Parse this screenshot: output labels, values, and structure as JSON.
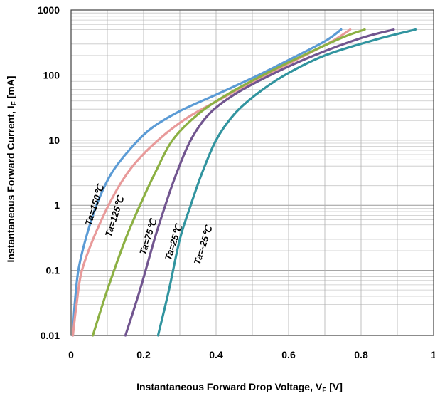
{
  "chart_data": {
    "type": "line",
    "xlabel": "Instantaneous Forward Drop Voltage, V",
    "xlabel_sub": "F",
    "xlabel_unit": " [V]",
    "ylabel": "Instantaneous Forward Current, I",
    "ylabel_sub": "F",
    "ylabel_unit": " [mA]",
    "xlim": [
      0,
      1
    ],
    "ylim": [
      0.01,
      1000
    ],
    "yscale": "log",
    "grid": true,
    "x_ticks": [
      "0",
      "0.2",
      "0.4",
      "0.6",
      "0.8",
      "1"
    ],
    "y_ticks": [
      "0.01",
      "0.1",
      "1",
      "10",
      "100",
      "1000"
    ],
    "series": [
      {
        "name": "Ta=150℃",
        "color": "#5b9bd5",
        "points": [
          [
            0.005,
            0.01
          ],
          [
            0.01,
            0.03
          ],
          [
            0.02,
            0.1
          ],
          [
            0.04,
            0.3
          ],
          [
            0.07,
            1
          ],
          [
            0.11,
            3
          ],
          [
            0.16,
            7
          ],
          [
            0.22,
            15
          ],
          [
            0.3,
            28
          ],
          [
            0.4,
            50
          ],
          [
            0.5,
            90
          ],
          [
            0.6,
            170
          ],
          [
            0.7,
            330
          ],
          [
            0.745,
            500
          ]
        ]
      },
      {
        "name": "Ta=125℃",
        "color": "#e89a9a",
        "points": [
          [
            0.005,
            0.01
          ],
          [
            0.015,
            0.03
          ],
          [
            0.03,
            0.1
          ],
          [
            0.07,
            0.4
          ],
          [
            0.12,
            1.5
          ],
          [
            0.17,
            4
          ],
          [
            0.24,
            10
          ],
          [
            0.32,
            22
          ],
          [
            0.42,
            45
          ],
          [
            0.52,
            90
          ],
          [
            0.62,
            170
          ],
          [
            0.72,
            330
          ],
          [
            0.77,
            500
          ]
        ]
      },
      {
        "name": "Ta=75℃",
        "color": "#8cb043",
        "points": [
          [
            0.06,
            0.01
          ],
          [
            0.1,
            0.05
          ],
          [
            0.15,
            0.3
          ],
          [
            0.19,
            1
          ],
          [
            0.23,
            3
          ],
          [
            0.28,
            10
          ],
          [
            0.35,
            25
          ],
          [
            0.43,
            50
          ],
          [
            0.53,
            100
          ],
          [
            0.64,
            200
          ],
          [
            0.75,
            380
          ],
          [
            0.81,
            500
          ]
        ]
      },
      {
        "name": "Ta=25℃",
        "color": "#71558f",
        "points": [
          [
            0.15,
            0.01
          ],
          [
            0.19,
            0.05
          ],
          [
            0.23,
            0.3
          ],
          [
            0.26,
            1
          ],
          [
            0.29,
            3
          ],
          [
            0.33,
            10
          ],
          [
            0.38,
            25
          ],
          [
            0.45,
            50
          ],
          [
            0.55,
            100
          ],
          [
            0.67,
            200
          ],
          [
            0.8,
            370
          ],
          [
            0.89,
            500
          ]
        ]
      },
      {
        "name": "Ta=-25℃",
        "color": "#31949f",
        "points": [
          [
            0.24,
            0.01
          ],
          [
            0.27,
            0.05
          ],
          [
            0.3,
            0.3
          ],
          [
            0.33,
            1
          ],
          [
            0.36,
            3
          ],
          [
            0.4,
            10
          ],
          [
            0.45,
            25
          ],
          [
            0.51,
            50
          ],
          [
            0.59,
            100
          ],
          [
            0.7,
            200
          ],
          [
            0.84,
            350
          ],
          [
            0.95,
            500
          ]
        ]
      }
    ]
  }
}
